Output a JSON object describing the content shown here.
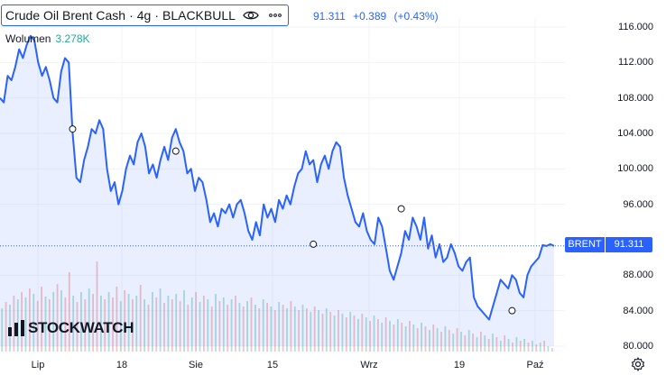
{
  "legend": {
    "symbol": "Crude Oil Brent Cash",
    "interval": "4g",
    "broker": "BLACKBULL",
    "separator": "·",
    "last": "91.311",
    "change": "+0.389",
    "change_pct": "(+0.43%)"
  },
  "volume": {
    "label": "Wolumen",
    "value": "3.278K"
  },
  "price_tag": {
    "name": "BRENT",
    "value": "91.311"
  },
  "logo": {
    "text": "STOCKWATCH"
  },
  "colors": {
    "line": "#2962ff",
    "volume_up": "#26a69a",
    "volume_down": "#ef5350",
    "grid": "#f0f3fa"
  },
  "icons": {
    "visibility": "eye-icon",
    "menu": "more-icon",
    "settings": "gear-icon"
  },
  "chart_data": {
    "type": "line",
    "y_ticks": [
      "116.000",
      "112.000",
      "108.000",
      "104.000",
      "100.000",
      "96.000",
      "88.000",
      "84.000",
      "80.000"
    ],
    "y_tick_values": [
      116,
      112,
      108,
      104,
      100,
      96,
      88,
      84,
      80
    ],
    "x_ticks": [
      "Lip",
      "18",
      "Sie",
      "15",
      "Wrz",
      "19",
      "Paź"
    ],
    "ylim": [
      79.5,
      117.5
    ],
    "grid": true,
    "series": [
      {
        "values": [
          108.0,
          107.5,
          110.5,
          110.0,
          111.5,
          113.5,
          112.5,
          114.0,
          115.0,
          114.5,
          112.0,
          110.5,
          111.5,
          110.0,
          108.0,
          107.5,
          111.0,
          112.5,
          112.0,
          104.0,
          99.0,
          98.5,
          101.0,
          102.5,
          104.5,
          104.0,
          105.5,
          104.5,
          100.0,
          97.5,
          98.5,
          96.0,
          97.5,
          100.0,
          101.5,
          100.5,
          103.0,
          104.0,
          102.5,
          99.5,
          100.5,
          99.0,
          101.0,
          102.5,
          101.0,
          103.5,
          104.5,
          103.0,
          102.0,
          99.5,
          100.0,
          97.5,
          99.0,
          98.5,
          96.5,
          94.0,
          95.0,
          93.5,
          95.5,
          95.0,
          96.0,
          94.5,
          96.0,
          96.5,
          95.0,
          93.0,
          92.0,
          94.0,
          92.5,
          96.0,
          94.5,
          95.5,
          94.0,
          96.5,
          95.5,
          97.0,
          96.0,
          98.0,
          99.5,
          100.0,
          102.0,
          100.5,
          101.0,
          98.5,
          100.5,
          101.5,
          100.0,
          102.0,
          103.0,
          102.5,
          99.0,
          97.0,
          95.5,
          94.0,
          93.5,
          95.0,
          93.0,
          92.0,
          91.5,
          94.5,
          93.5,
          91.0,
          88.5,
          87.5,
          89.0,
          90.5,
          93.0,
          92.0,
          94.5,
          93.5,
          92.0,
          94.5,
          91.0,
          92.5,
          90.0,
          91.5,
          89.5,
          90.0,
          91.5,
          90.5,
          89.0,
          88.5,
          89.5,
          90.0,
          85.5,
          84.5,
          84.0,
          83.5,
          83.0,
          84.5,
          86.0,
          87.5,
          87.0,
          86.5,
          88.0,
          87.5,
          86.0,
          85.5,
          88.0,
          89.0,
          89.5,
          90.0,
          91.4,
          91.3,
          91.5,
          91.311
        ],
        "markers": [
          "",
          "",
          "",
          "",
          "",
          "",
          "",
          "",
          "",
          "",
          "",
          "",
          "",
          "",
          "",
          "",
          "",
          "",
          "",
          "",
          "",
          "",
          "",
          "",
          "",
          "",
          "",
          "",
          "",
          "",
          "",
          "",
          "",
          "",
          "",
          "",
          "",
          "",
          "",
          "",
          "",
          "",
          "",
          "",
          "",
          "",
          "",
          "",
          "",
          "",
          "",
          "",
          "",
          "",
          "",
          "",
          "",
          "",
          "",
          "",
          "",
          "",
          "",
          "",
          "",
          "",
          "",
          "",
          "",
          "",
          "",
          "",
          "",
          "",
          "",
          "",
          "",
          "",
          "",
          "",
          "",
          "",
          "",
          "",
          "",
          "",
          "",
          "",
          "",
          "",
          "",
          "",
          "",
          "",
          "",
          "",
          "",
          "",
          "",
          "",
          "",
          "",
          "",
          "",
          "",
          "",
          "",
          "",
          "",
          "",
          "",
          "",
          "",
          "",
          "",
          "",
          "",
          "",
          "",
          "",
          "",
          "",
          "",
          "",
          "",
          "",
          "",
          "",
          "",
          "",
          "",
          "",
          "",
          "",
          "",
          "",
          "",
          "",
          "",
          "",
          "",
          "",
          "",
          "",
          "",
          "",
          "",
          "",
          "",
          ""
        ]
      }
    ],
    "dividend_markers": [
      {
        "index": 19,
        "value": 104.5
      },
      {
        "index": 46,
        "value": 102.0
      },
      {
        "index": 82,
        "value": 91.5
      },
      {
        "index": 105,
        "value": 95.5
      },
      {
        "index": 134,
        "value": 84.0
      }
    ],
    "volume": [
      {
        "v": 48,
        "up": true
      },
      {
        "v": 55,
        "up": false
      },
      {
        "v": 52,
        "up": true
      },
      {
        "v": 62,
        "up": false
      },
      {
        "v": 58,
        "up": true
      },
      {
        "v": 66,
        "up": false
      },
      {
        "v": 60,
        "up": true
      },
      {
        "v": 70,
        "up": false
      },
      {
        "v": 64,
        "up": true
      },
      {
        "v": 56,
        "up": false
      },
      {
        "v": 72,
        "up": false
      },
      {
        "v": 61,
        "up": true
      },
      {
        "v": 58,
        "up": false
      },
      {
        "v": 66,
        "up": true
      },
      {
        "v": 75,
        "up": false
      },
      {
        "v": 68,
        "up": true
      },
      {
        "v": 60,
        "up": false
      },
      {
        "v": 88,
        "up": false
      },
      {
        "v": 62,
        "up": true
      },
      {
        "v": 55,
        "up": false
      },
      {
        "v": 66,
        "up": true
      },
      {
        "v": 58,
        "up": false
      },
      {
        "v": 70,
        "up": true
      },
      {
        "v": 64,
        "up": false
      },
      {
        "v": 100,
        "up": false
      },
      {
        "v": 62,
        "up": true
      },
      {
        "v": 58,
        "up": false
      },
      {
        "v": 66,
        "up": true
      },
      {
        "v": 60,
        "up": false
      },
      {
        "v": 72,
        "up": false
      },
      {
        "v": 56,
        "up": true
      },
      {
        "v": 68,
        "up": false
      },
      {
        "v": 64,
        "up": true
      },
      {
        "v": 58,
        "up": false
      },
      {
        "v": 62,
        "up": true
      },
      {
        "v": 74,
        "up": false
      },
      {
        "v": 58,
        "up": true
      },
      {
        "v": 52,
        "up": false
      },
      {
        "v": 66,
        "up": true
      },
      {
        "v": 60,
        "up": false
      },
      {
        "v": 70,
        "up": true
      },
      {
        "v": 54,
        "up": false
      },
      {
        "v": 62,
        "up": true
      },
      {
        "v": 58,
        "up": false
      },
      {
        "v": 64,
        "up": true
      },
      {
        "v": 56,
        "up": false
      },
      {
        "v": 68,
        "up": true
      },
      {
        "v": 52,
        "up": false
      },
      {
        "v": 60,
        "up": true
      },
      {
        "v": 66,
        "up": false
      },
      {
        "v": 55,
        "up": true
      },
      {
        "v": 62,
        "up": false
      },
      {
        "v": 58,
        "up": true
      },
      {
        "v": 50,
        "up": false
      },
      {
        "v": 64,
        "up": true
      },
      {
        "v": 56,
        "up": false
      },
      {
        "v": 60,
        "up": true
      },
      {
        "v": 52,
        "up": false
      },
      {
        "v": 58,
        "up": true
      },
      {
        "v": 62,
        "up": false
      },
      {
        "v": 54,
        "up": true
      },
      {
        "v": 50,
        "up": false
      },
      {
        "v": 56,
        "up": true
      },
      {
        "v": 60,
        "up": false
      },
      {
        "v": 52,
        "up": true
      },
      {
        "v": 48,
        "up": false
      },
      {
        "v": 58,
        "up": true
      },
      {
        "v": 54,
        "up": false
      },
      {
        "v": 50,
        "up": true
      },
      {
        "v": 46,
        "up": false
      },
      {
        "v": 55,
        "up": true
      },
      {
        "v": 52,
        "up": false
      },
      {
        "v": 48,
        "up": true
      },
      {
        "v": 56,
        "up": false
      },
      {
        "v": 50,
        "up": true
      },
      {
        "v": 46,
        "up": false
      },
      {
        "v": 52,
        "up": true
      },
      {
        "v": 48,
        "up": false
      },
      {
        "v": 44,
        "up": true
      },
      {
        "v": 50,
        "up": false
      },
      {
        "v": 46,
        "up": true
      },
      {
        "v": 42,
        "up": false
      },
      {
        "v": 48,
        "up": true
      },
      {
        "v": 44,
        "up": false
      },
      {
        "v": 40,
        "up": true
      },
      {
        "v": 46,
        "up": false
      },
      {
        "v": 42,
        "up": true
      },
      {
        "v": 38,
        "up": false
      },
      {
        "v": 44,
        "up": true
      },
      {
        "v": 40,
        "up": false
      },
      {
        "v": 36,
        "up": true
      },
      {
        "v": 42,
        "up": false
      },
      {
        "v": 38,
        "up": true
      },
      {
        "v": 34,
        "up": false
      },
      {
        "v": 40,
        "up": true
      },
      {
        "v": 36,
        "up": false
      },
      {
        "v": 32,
        "up": true
      },
      {
        "v": 38,
        "up": false
      },
      {
        "v": 34,
        "up": true
      },
      {
        "v": 30,
        "up": false
      },
      {
        "v": 36,
        "up": true
      },
      {
        "v": 32,
        "up": false
      },
      {
        "v": 28,
        "up": true
      },
      {
        "v": 34,
        "up": false
      },
      {
        "v": 30,
        "up": true
      },
      {
        "v": 26,
        "up": false
      },
      {
        "v": 32,
        "up": true
      },
      {
        "v": 28,
        "up": false
      },
      {
        "v": 24,
        "up": true
      },
      {
        "v": 30,
        "up": false
      },
      {
        "v": 26,
        "up": true
      },
      {
        "v": 22,
        "up": false
      },
      {
        "v": 28,
        "up": true
      },
      {
        "v": 24,
        "up": false
      },
      {
        "v": 20,
        "up": true
      },
      {
        "v": 26,
        "up": false
      },
      {
        "v": 22,
        "up": true
      },
      {
        "v": 18,
        "up": false
      },
      {
        "v": 24,
        "up": true
      },
      {
        "v": 20,
        "up": false
      },
      {
        "v": 16,
        "up": true
      },
      {
        "v": 22,
        "up": false
      },
      {
        "v": 18,
        "up": true
      },
      {
        "v": 14,
        "up": false
      },
      {
        "v": 20,
        "up": true
      },
      {
        "v": 16,
        "up": false
      },
      {
        "v": 12,
        "up": true
      },
      {
        "v": 18,
        "up": false
      },
      {
        "v": 14,
        "up": true
      },
      {
        "v": 10,
        "up": false
      },
      {
        "v": 16,
        "up": true
      },
      {
        "v": 12,
        "up": false
      },
      {
        "v": 14,
        "up": true
      },
      {
        "v": 10,
        "up": false
      },
      {
        "v": 12,
        "up": true
      },
      {
        "v": 8,
        "up": false
      },
      {
        "v": 10,
        "up": true
      },
      {
        "v": 12,
        "up": false
      },
      {
        "v": 6,
        "up": true
      },
      {
        "v": 4,
        "up": false
      }
    ]
  }
}
